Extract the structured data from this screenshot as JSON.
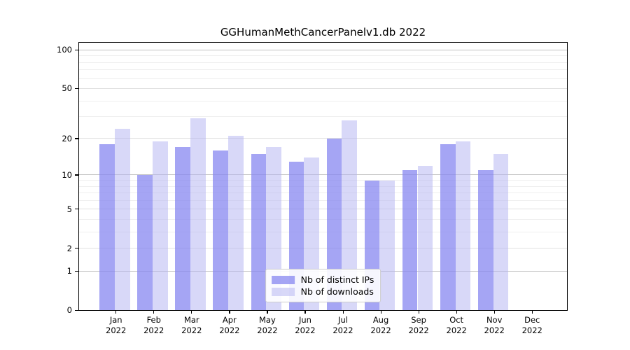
{
  "title": "GGHumanMethCancerPanelv1.db 2022",
  "chart_data": {
    "type": "bar",
    "title": "GGHumanMethCancerPanelv1.db 2022",
    "categories": [
      "Jan 2022",
      "Feb 2022",
      "Mar 2022",
      "Apr 2022",
      "May 2022",
      "Jun 2022",
      "Jul 2022",
      "Aug 2022",
      "Sep 2022",
      "Oct 2022",
      "Nov 2022",
      "Dec 2022"
    ],
    "series": [
      {
        "name": "Nb of distinct IPs",
        "color": "rgba(135,135,240,0.75)",
        "values": [
          18,
          10,
          17,
          16,
          15,
          13,
          20,
          9,
          11,
          18,
          11,
          0
        ]
      },
      {
        "name": "Nb of downloads",
        "color": "rgba(180,180,242,0.52)",
        "values": [
          24,
          19,
          29,
          21,
          17,
          14,
          28,
          9,
          12,
          19,
          15,
          0
        ]
      }
    ],
    "yscale": "log1p",
    "ylim": [
      0,
      114
    ],
    "y_ticks": [
      0,
      1,
      2,
      5,
      10,
      20,
      50,
      100
    ],
    "y_minor_gridlines": [
      3,
      4,
      6,
      7,
      8,
      9,
      30,
      40,
      60,
      70,
      80,
      90
    ],
    "grid": true,
    "legend_position": "lower center",
    "colors": {
      "bar_distinct_ips": "#aaaaf4",
      "bar_downloads": "#dadaf8",
      "grid_major": "#c2c2c2",
      "grid_minor": "#efefef",
      "axis": "#000000"
    }
  }
}
